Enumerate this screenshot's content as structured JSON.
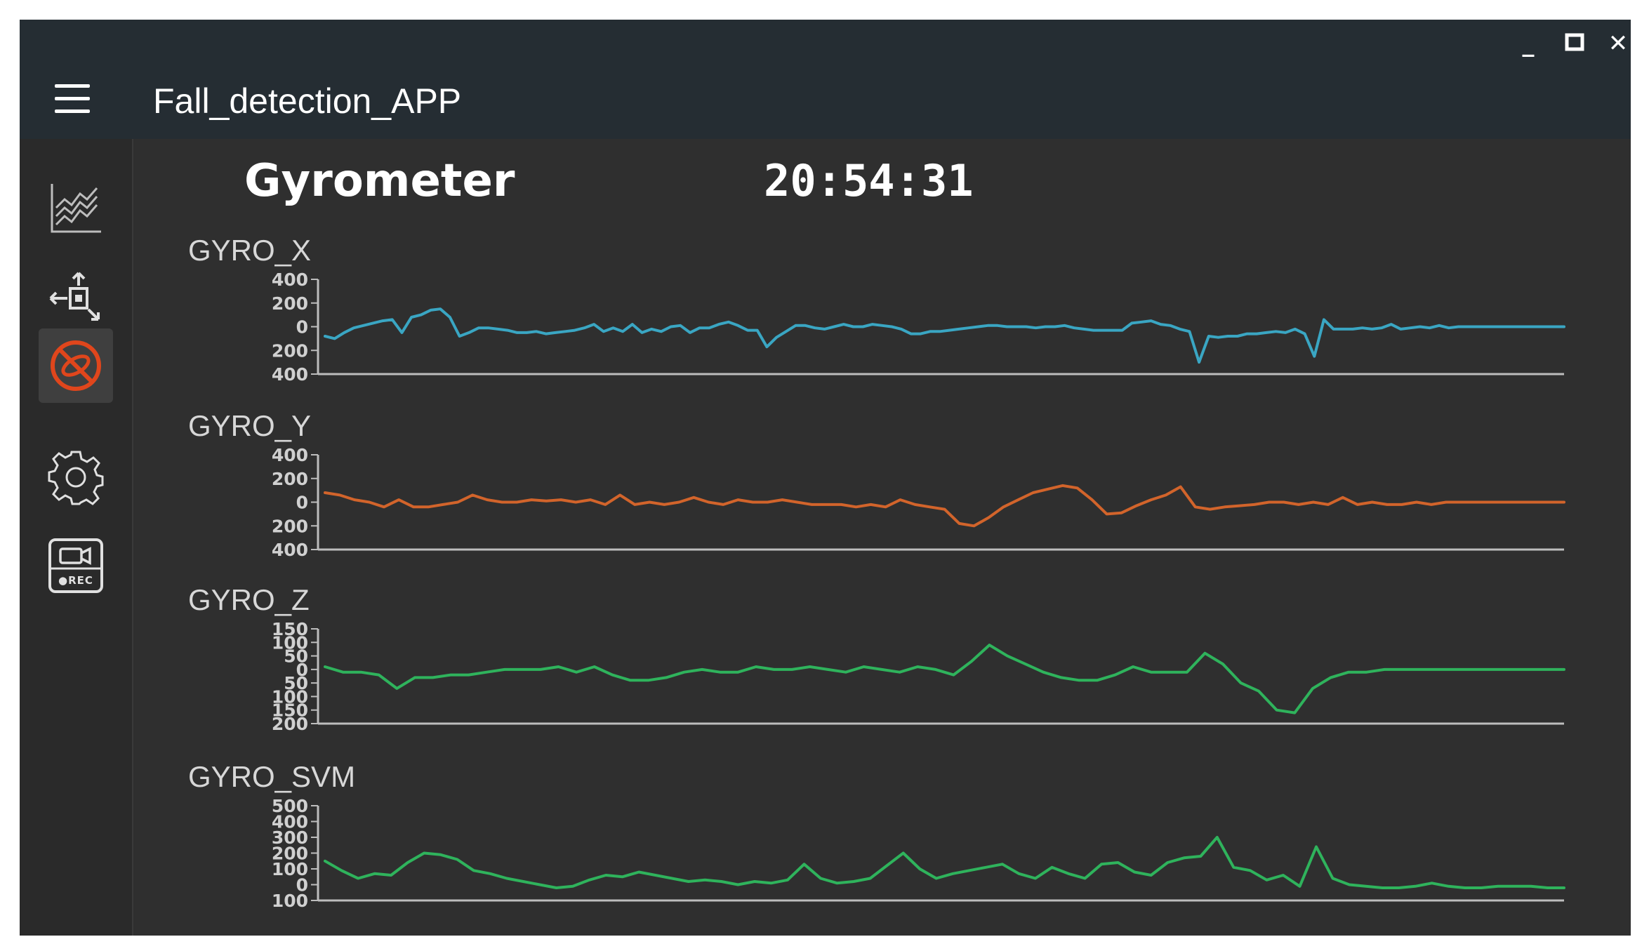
{
  "window": {
    "title": "Fall_detection_APP",
    "controls": {
      "minimize": "_",
      "maximize": "□",
      "close": "✕"
    }
  },
  "sidebar": {
    "items": [
      {
        "icon": "chart-lines-icon",
        "active": false
      },
      {
        "icon": "export-transfer-icon",
        "active": false
      },
      {
        "icon": "fall-alert-disabled-icon",
        "active": true,
        "color": "#e0461c"
      },
      {
        "icon": "gear-icon",
        "active": false
      },
      {
        "icon": "camera-rec-icon",
        "label": "●REC",
        "active": false
      }
    ]
  },
  "header": {
    "title": "Gyrometer",
    "time": "20:54:31"
  },
  "colors": {
    "gyro_x": "#3aa6c3",
    "gyro_y": "#d2642b",
    "gyro_z": "#2fb35c",
    "gyro_svm": "#2fb35c"
  },
  "chart_data": [
    {
      "type": "line",
      "title": "GYRO_X",
      "ylim": [
        -400,
        400
      ],
      "yticks": [
        400,
        200,
        0,
        -200,
        -400
      ],
      "ytick_labels": [
        "400",
        "200",
        "0",
        "200",
        "400"
      ],
      "series": [
        {
          "values": [
            -80,
            -100,
            -50,
            -10,
            10,
            30,
            50,
            60,
            -50,
            80,
            100,
            140,
            150,
            80,
            -80,
            -50,
            -10,
            -10,
            -20,
            -30,
            -50,
            -50,
            -40,
            -60,
            -50,
            -40,
            -30,
            -10,
            20,
            -40,
            -10,
            -40,
            20,
            -50,
            -20,
            -40,
            0,
            10,
            -50,
            -10,
            -10,
            20,
            40,
            10,
            -30,
            -30,
            -170,
            -90,
            -40,
            10,
            10,
            -10,
            -20,
            0,
            20,
            0,
            0,
            20,
            10,
            0,
            -20,
            -60,
            -60,
            -40,
            -40,
            -30,
            -20,
            -10,
            0,
            10,
            10,
            0,
            0,
            0,
            -10,
            0,
            0,
            10,
            -10,
            -20,
            -30,
            -30,
            -30,
            -30,
            30,
            40,
            50,
            20,
            10,
            -20,
            -40,
            -300,
            -80,
            -90,
            -80,
            -80,
            -60,
            -60,
            -50,
            -40,
            -50,
            -20,
            -60,
            -250,
            60,
            -20,
            -20,
            -20,
            -10,
            -20,
            -10,
            20,
            -20,
            -10,
            0,
            -10,
            10,
            -10,
            0,
            0,
            0,
            0,
            0,
            0,
            0,
            0,
            0,
            0,
            0,
            0
          ]
        }
      ]
    },
    {
      "type": "line",
      "title": "GYRO_Y",
      "ylim": [
        -400,
        400
      ],
      "yticks": [
        400,
        200,
        0,
        -200,
        -400
      ],
      "ytick_labels": [
        "400",
        "200",
        "0",
        "200",
        "400"
      ],
      "series": [
        {
          "values": [
            80,
            60,
            20,
            0,
            -40,
            20,
            -40,
            -40,
            -20,
            0,
            60,
            20,
            0,
            0,
            20,
            10,
            20,
            0,
            20,
            -20,
            60,
            -20,
            0,
            -20,
            0,
            40,
            0,
            -20,
            20,
            0,
            0,
            20,
            0,
            -20,
            -20,
            -20,
            -40,
            -20,
            -40,
            20,
            -20,
            -40,
            -60,
            -180,
            -200,
            -130,
            -40,
            20,
            80,
            110,
            140,
            120,
            20,
            -100,
            -90,
            -30,
            20,
            60,
            130,
            -40,
            -60,
            -40,
            -30,
            -20,
            0,
            0,
            -20,
            0,
            -20,
            40,
            -20,
            0,
            -20,
            -20,
            0,
            -20,
            0,
            0,
            0,
            0,
            0,
            0,
            0,
            0,
            0
          ]
        }
      ]
    },
    {
      "type": "line",
      "title": "GYRO_Z",
      "ylim": [
        -200,
        150
      ],
      "yticks": [
        150,
        100,
        50,
        0,
        -50,
        -100,
        -150,
        -200
      ],
      "ytick_labels": [
        "150",
        "100",
        "50",
        "0",
        "50",
        "100",
        "150",
        "200"
      ],
      "series": [
        {
          "values": [
            10,
            -10,
            -10,
            -20,
            -70,
            -30,
            -30,
            -20,
            -20,
            -10,
            0,
            0,
            0,
            10,
            -10,
            10,
            -20,
            -40,
            -40,
            -30,
            -10,
            0,
            -10,
            -10,
            10,
            0,
            0,
            10,
            0,
            -10,
            10,
            0,
            -10,
            10,
            0,
            -20,
            30,
            90,
            50,
            20,
            -10,
            -30,
            -40,
            -40,
            -20,
            10,
            -10,
            -10,
            -10,
            60,
            20,
            -50,
            -80,
            -150,
            -160,
            -70,
            -30,
            -10,
            -10,
            0,
            0,
            0,
            0,
            0,
            0,
            0,
            0,
            0,
            0,
            0
          ]
        }
      ]
    },
    {
      "type": "line",
      "title": "GYRO_SVM",
      "ylim": [
        -100,
        500
      ],
      "yticks": [
        500,
        400,
        300,
        200,
        100,
        0,
        -100
      ],
      "ytick_labels": [
        "500",
        "400",
        "300",
        "200",
        "100",
        "0",
        "100"
      ],
      "series": [
        {
          "values": [
            150,
            90,
            40,
            70,
            60,
            140,
            200,
            190,
            160,
            90,
            70,
            40,
            20,
            0,
            -20,
            -10,
            30,
            60,
            50,
            80,
            60,
            40,
            20,
            30,
            20,
            0,
            20,
            10,
            30,
            130,
            40,
            10,
            20,
            40,
            120,
            200,
            100,
            40,
            70,
            90,
            110,
            130,
            70,
            40,
            110,
            70,
            40,
            130,
            140,
            80,
            60,
            140,
            170,
            180,
            300,
            110,
            90,
            30,
            60,
            -10,
            240,
            40,
            0,
            -10,
            -20,
            -20,
            -10,
            10,
            -10,
            -20,
            -20,
            -10,
            -10,
            -10,
            -20,
            -20
          ]
        }
      ]
    }
  ]
}
